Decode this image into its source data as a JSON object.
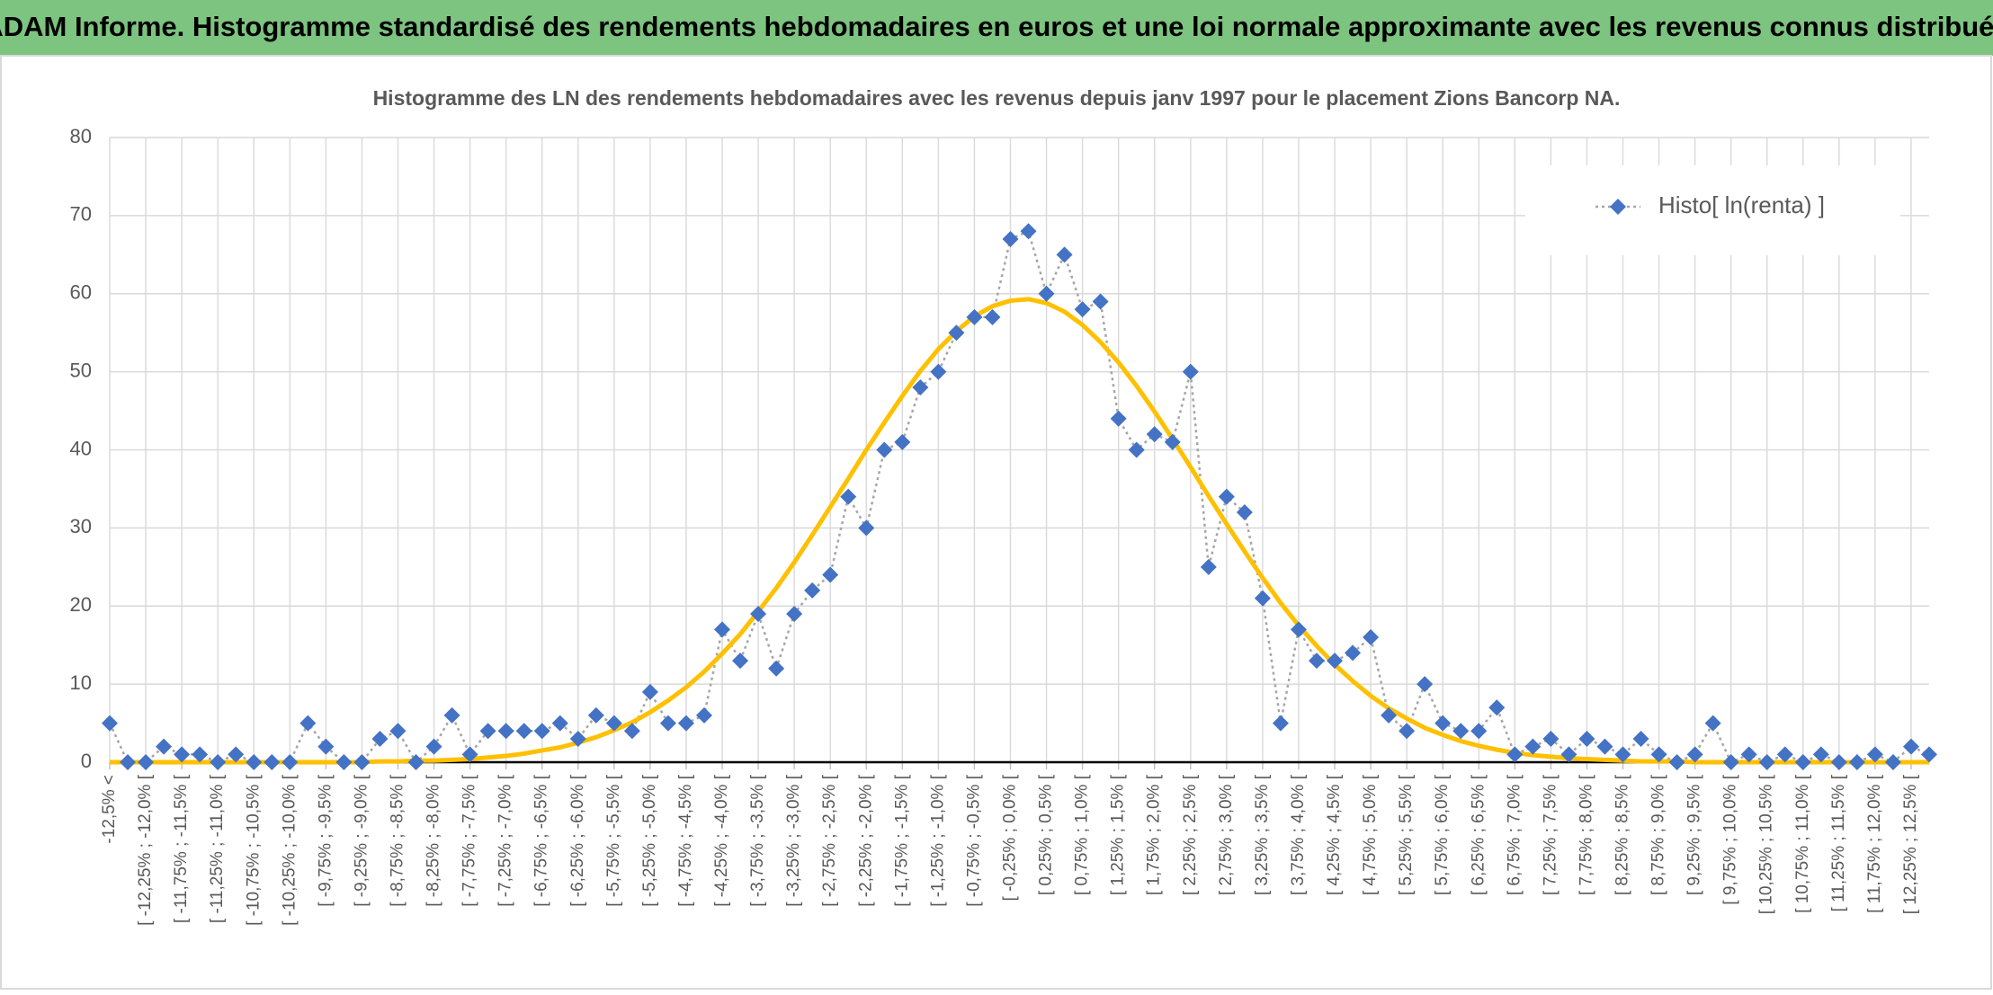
{
  "chart_data": {
    "type": "line",
    "title": "ADAM Informe. Histogramme standardisé des rendements hebdomadaires en euros et une loi normale approximante avec les revenus connus distribués",
    "subtitle": "Histogramme des LN des rendements hebdomadaires avec les revenus depuis janv 1997 pour le placement Zions Bancorp NA.",
    "categories": [
      "-12,5% <",
      null,
      "[ -12,25% ; -12,0% [",
      null,
      "[ -11,75% ; -11,5% [",
      null,
      "[ -11,25% ; -11,0% [",
      null,
      "[ -10,75% ; -10,5% [",
      null,
      "[ -10,25% ; -10,0% [",
      null,
      "[ -9,75% ; -9,5% [",
      null,
      "[ -9,25% ; -9,0% [",
      null,
      "[ -8,75% ; -8,5% [",
      null,
      "[ -8,25% ; -8,0% [",
      null,
      "[ -7,75% ; -7,5% [",
      null,
      "[ -7,25% ; -7,0% [",
      null,
      "[ -6,75% ; -6,5% [",
      null,
      "[ -6,25% ; -6,0% [",
      null,
      "[ -5,75% ; -5,5% [",
      null,
      "[ -5,25% ; -5,0% [",
      null,
      "[ -4,75% ; -4,5% [",
      null,
      "[ -4,25% ; -4,0% [",
      null,
      "[ -3,75% ; -3,5% [",
      null,
      "[ -3,25% ; -3,0% [",
      null,
      "[ -2,75% ; -2,5% [",
      null,
      "[ -2,25% ; -2,0% [",
      null,
      "[ -1,75% ; -1,5% [",
      null,
      "[ -1,25% ; -1,0% [",
      null,
      "[ -0,75% ; -0,5% [",
      null,
      "[ -0,25% ; 0,0% [",
      null,
      "[ 0,25% ; 0,5% [",
      null,
      "[ 0,75% ; 1,0% [",
      null,
      "[ 1,25% ; 1,5% [",
      null,
      "[ 1,75% ; 2,0% [",
      null,
      "[ 2,25% ; 2,5% [",
      null,
      "[ 2,75% ; 3,0% [",
      null,
      "[ 3,25% ; 3,5% [",
      null,
      "[ 3,75% ; 4,0% [",
      null,
      "[ 4,25% ; 4,5% [",
      null,
      "[ 4,75% ; 5,0% [",
      null,
      "[ 5,25% ; 5,5% [",
      null,
      "[ 5,75% ; 6,0% [",
      null,
      "[ 6,25% ; 6,5% [",
      null,
      "[ 6,75% ; 7,0% [",
      null,
      "[ 7,25% ; 7,5% [",
      null,
      "[ 7,75% ; 8,0% [",
      null,
      "[ 8,25% ; 8,5% [",
      null,
      "[ 8,75% ; 9,0% [",
      null,
      "[ 9,25% ; 9,5% [",
      null,
      "[ 9,75% ; 10,0% [",
      null,
      "[ 10,25% ; 10,5% [",
      null,
      "[ 10,75% ; 11,0% [",
      null,
      "[ 11,25% ; 11,5% [",
      null,
      "[ 11,75% ; 12,0% [",
      null,
      "[ 12,25% ; 12,5% [",
      null
    ],
    "series": [
      {
        "name": "Histo[ ln(renta) ]",
        "color": "#4472c4",
        "line_color": "#a6a6a6",
        "line_style": "dotted",
        "marker": "diamond",
        "values": [
          5,
          0,
          0,
          2,
          1,
          1,
          0,
          1,
          0,
          0,
          0,
          5,
          2,
          0,
          0,
          3,
          4,
          0,
          2,
          6,
          1,
          4,
          4,
          4,
          4,
          5,
          3,
          6,
          5,
          4,
          9,
          5,
          5,
          6,
          17,
          13,
          19,
          12,
          19,
          22,
          24,
          34,
          30,
          40,
          41,
          48,
          50,
          55,
          57,
          57,
          67,
          68,
          60,
          65,
          58,
          59,
          44,
          40,
          42,
          41,
          50,
          25,
          34,
          32,
          21,
          5,
          17,
          13,
          13,
          14,
          16,
          6,
          4,
          10,
          5,
          4,
          4,
          7,
          1,
          2,
          3,
          1,
          3,
          2,
          1,
          3,
          1,
          0,
          1,
          5,
          0,
          1,
          0,
          1,
          0,
          1,
          0,
          0,
          1,
          0,
          2,
          1
        ]
      },
      {
        "color": "#ffc000",
        "line_style": "solid",
        "marker": "none",
        "values": [
          0,
          0,
          0,
          0,
          0,
          0,
          0,
          0,
          0,
          0,
          0,
          0,
          0,
          0,
          0,
          0.1,
          0.1,
          0.2,
          0.2,
          0.3,
          0.4,
          0.6,
          0.8,
          1.1,
          1.5,
          1.9,
          2.5,
          3.2,
          4.1,
          5.1,
          6.4,
          7.9,
          9.6,
          11.6,
          13.9,
          16.4,
          19.3,
          22.3,
          25.6,
          29.1,
          32.7,
          36.3,
          40,
          43.5,
          46.9,
          50.1,
          52.9,
          55.2,
          57.1,
          58.4,
          59.1,
          59.3,
          58.8,
          57.7,
          56,
          53.8,
          51.2,
          48.2,
          44.9,
          41.4,
          37.8,
          34.1,
          30.5,
          27,
          23.6,
          20.4,
          17.5,
          14.9,
          12.5,
          10.4,
          8.5,
          6.9,
          5.6,
          4.4,
          3.5,
          2.7,
          2.1,
          1.6,
          1.2,
          0.9,
          0.7,
          0.5,
          0.4,
          0.3,
          0.2,
          0.1,
          0.1,
          0.1,
          0,
          0,
          0,
          0,
          0,
          0,
          0,
          0,
          0,
          0,
          0,
          0,
          0,
          0
        ]
      }
    ],
    "ylim": [
      0,
      80
    ],
    "yticks": [
      0,
      10,
      20,
      30,
      40,
      50,
      60,
      70,
      80
    ],
    "grid": true,
    "legend": "upper right"
  }
}
